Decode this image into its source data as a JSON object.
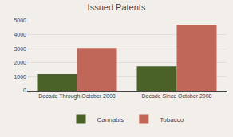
{
  "chart_data": {
    "type": "bar",
    "title": "Issued Patents",
    "categories": [
      "Decade Through October 2008",
      "Decade Since October 2008"
    ],
    "series": [
      {
        "name": "Cannabis",
        "color": "#4a6128",
        "values": [
          1200,
          1750
        ]
      },
      {
        "name": "Tobacco",
        "color": "#c0675a",
        "values": [
          3050,
          4700
        ]
      }
    ],
    "ylim": [
      0,
      5000
    ],
    "yticks": [
      0,
      1000,
      2000,
      3000,
      4000,
      5000
    ],
    "grid": true,
    "legend": "bottom"
  }
}
